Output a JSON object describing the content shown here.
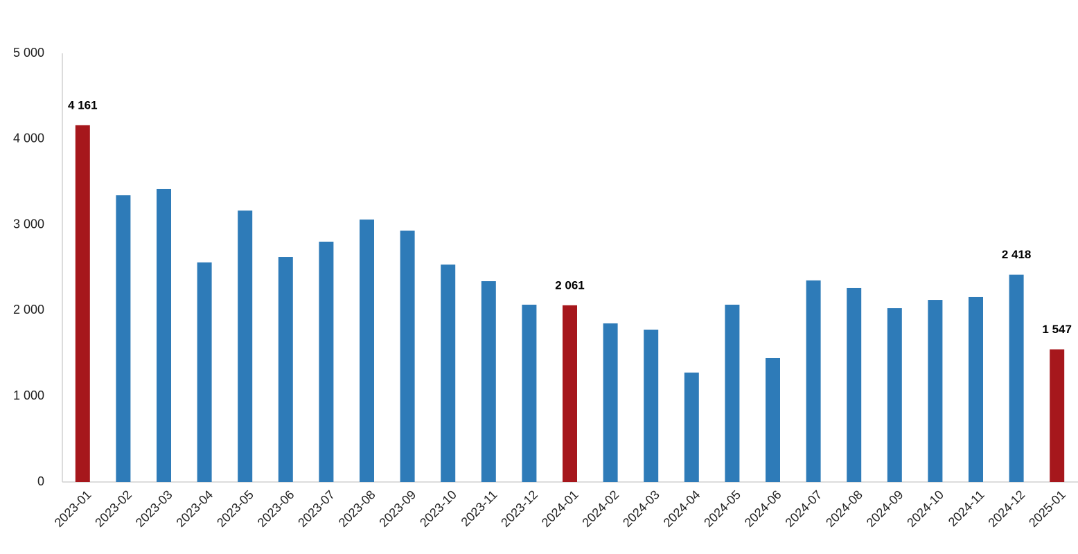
{
  "chart_data": {
    "type": "bar",
    "categories": [
      "2023-01",
      "2023-02",
      "2023-03",
      "2023-04",
      "2023-05",
      "2023-06",
      "2023-07",
      "2023-08",
      "2023-09",
      "2023-10",
      "2023-11",
      "2023-12",
      "2024-01",
      "2024-02",
      "2024-03",
      "2024-04",
      "2024-05",
      "2024-06",
      "2024-07",
      "2024-08",
      "2024-09",
      "2024-10",
      "2024-11",
      "2024-12",
      "2025-01"
    ],
    "values": [
      4161,
      3344,
      3417,
      2561,
      3166,
      2625,
      2803,
      3061,
      2932,
      2536,
      2342,
      2068,
      2061,
      1850,
      1777,
      1276,
      2068,
      1446,
      2351,
      2262,
      2027,
      2124,
      2157,
      2418,
      1547
    ],
    "value_labels": [
      "4 161",
      null,
      null,
      null,
      null,
      null,
      null,
      null,
      null,
      null,
      null,
      null,
      "2 061",
      null,
      null,
      null,
      null,
      null,
      null,
      null,
      null,
      null,
      null,
      "2 418",
      "1 547"
    ],
    "colors": [
      "#a6171c",
      "#2e7bb8",
      "#2e7bb8",
      "#2e7bb8",
      "#2e7bb8",
      "#2e7bb8",
      "#2e7bb8",
      "#2e7bb8",
      "#2e7bb8",
      "#2e7bb8",
      "#2e7bb8",
      "#2e7bb8",
      "#a6171c",
      "#2e7bb8",
      "#2e7bb8",
      "#2e7bb8",
      "#2e7bb8",
      "#2e7bb8",
      "#2e7bb8",
      "#2e7bb8",
      "#2e7bb8",
      "#2e7bb8",
      "#2e7bb8",
      "#2e7bb8",
      "#a6171c"
    ],
    "ylim": [
      0,
      5000
    ],
    "yticks": [
      0,
      {
        "value": 1000,
        "label": "1 000"
      },
      {
        "value": 2000,
        "label": "2 000"
      },
      {
        "value": 3000,
        "label": "3 000"
      },
      {
        "value": 4000,
        "label": "4 000"
      },
      {
        "value": 5000,
        "label": "5 000"
      }
    ],
    "grid": false
  }
}
